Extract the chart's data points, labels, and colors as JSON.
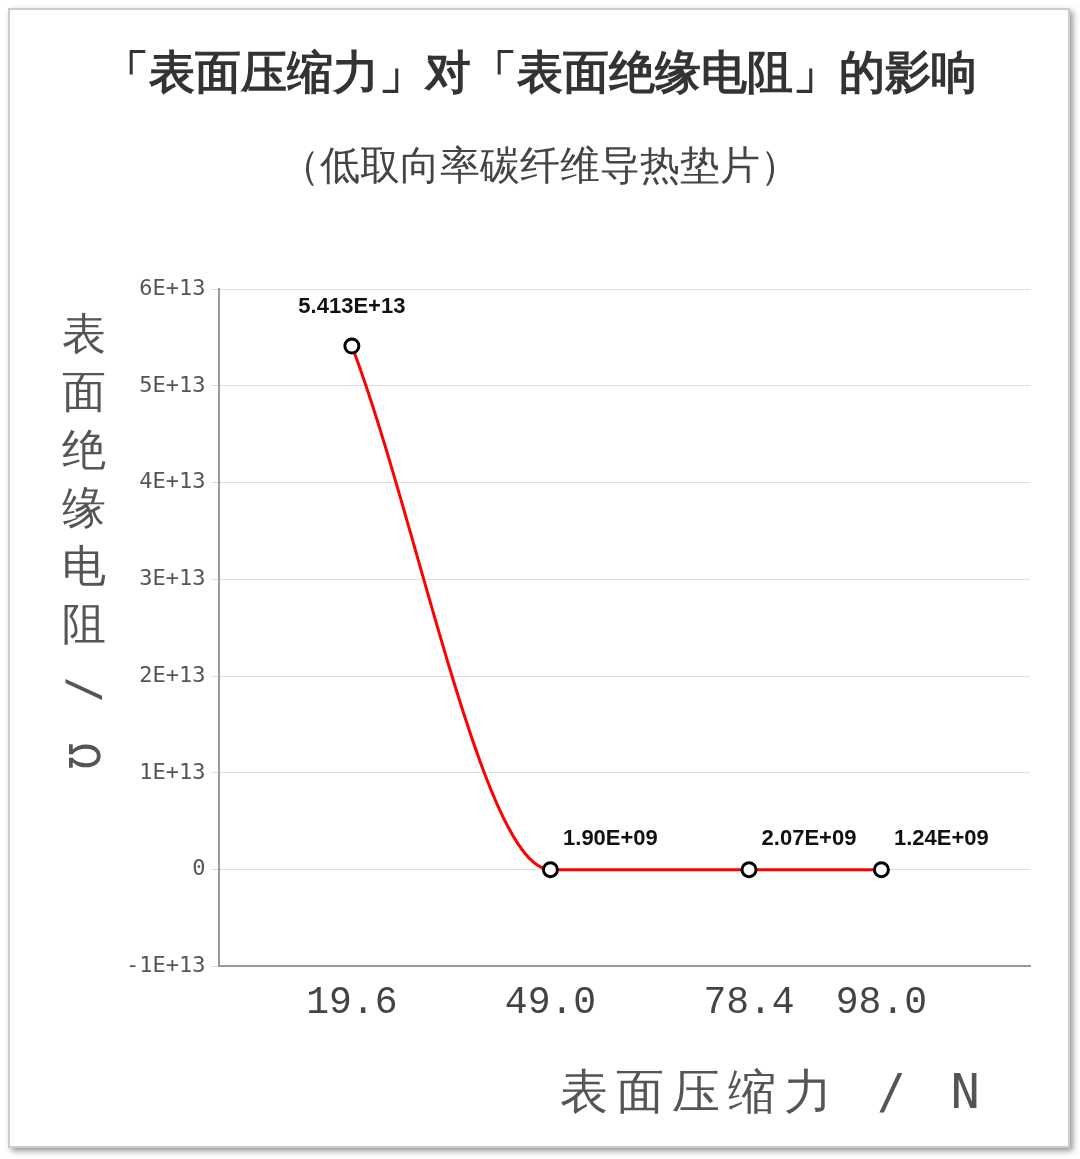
{
  "chart_data": {
    "type": "line",
    "title": "「表面压缩力」对「表面绝缘电阻」的影响",
    "subtitle": "（低取向率碳纤维导热垫片）",
    "xlabel": "表面压缩力 / N",
    "ylabel": "表面绝缘电阻 / Ω",
    "x": [
      19.6,
      49.0,
      78.4,
      98.0
    ],
    "series": [
      {
        "color": "#ff0000",
        "values": [
          54130000000000.0,
          1900000000.0,
          2070000000.0,
          1240000000.0
        ],
        "value_labels": [
          "5.413E+13",
          "1.90E+09",
          "2.07E+09",
          "1.24E+09"
        ]
      }
    ],
    "xlim": [
      0,
      120
    ],
    "xticks": [
      19.6,
      {
        "value": 49,
        "label": "49.0"
      },
      78.4,
      {
        "value": 98,
        "label": "98.0"
      }
    ],
    "ylim": [
      -10000000000000.0,
      60000000000000.0
    ],
    "yticks": [
      {
        "value": -10000000000000.0,
        "label": "-1E+13"
      },
      0,
      {
        "value": 10000000000000.0,
        "label": "1E+13"
      },
      {
        "value": 20000000000000.0,
        "label": "2E+13"
      },
      {
        "value": 30000000000000.0,
        "label": "3E+13"
      },
      {
        "value": 40000000000000.0,
        "label": "4E+13"
      },
      {
        "value": 50000000000000.0,
        "label": "5E+13"
      },
      {
        "value": 60000000000000.0,
        "label": "6E+13"
      }
    ],
    "grid": "y",
    "legend": false,
    "marker": "circle",
    "line_style": "solid"
  }
}
